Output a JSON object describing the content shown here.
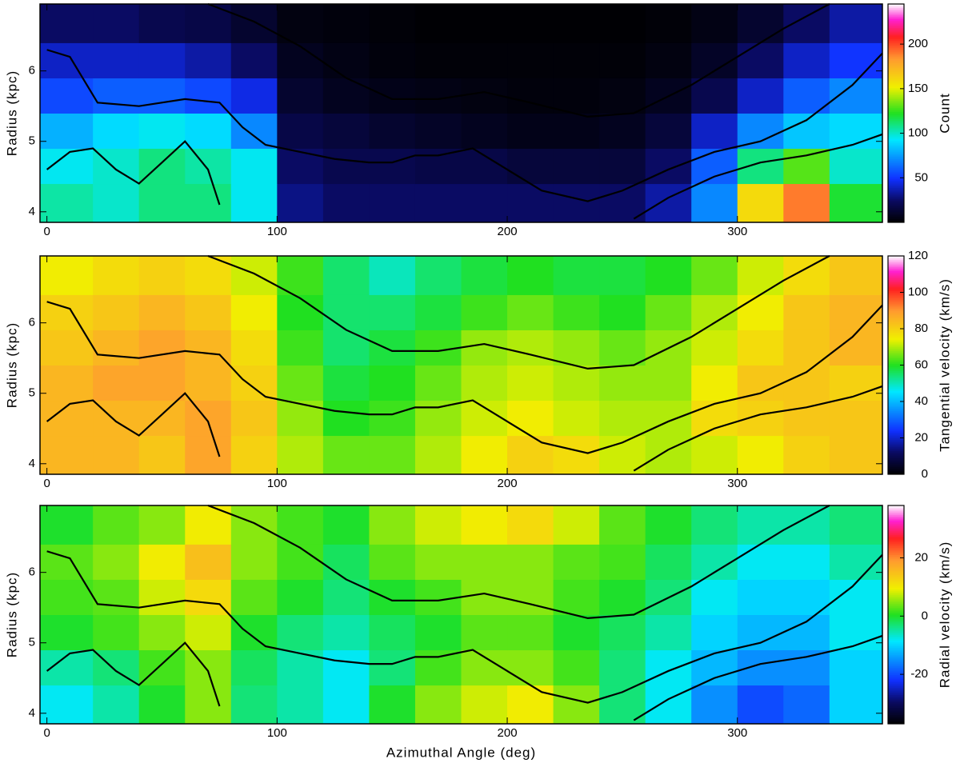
{
  "chart_data": [
    {
      "type": "heatmap",
      "y_label": "Radius (kpc)",
      "xlim": [
        -3,
        363
      ],
      "ylim": [
        3.85,
        6.95
      ],
      "xticks": [
        0,
        100,
        200,
        300
      ],
      "yticks": [
        4,
        5,
        6
      ],
      "x_bins": [
        -3,
        20,
        40,
        60,
        80,
        100,
        120,
        140,
        160,
        180,
        200,
        220,
        240,
        260,
        280,
        300,
        320,
        340,
        363
      ],
      "y_bins": [
        3.85,
        4.4,
        4.9,
        5.4,
        5.9,
        6.4,
        6.95
      ],
      "values": [
        [
          105,
          100,
          110,
          110,
          95,
          30,
          25,
          25,
          25,
          25,
          25,
          25,
          25,
          35,
          70,
          160,
          190,
          120
        ],
        [
          95,
          100,
          110,
          105,
          95,
          25,
          20,
          20,
          18,
          18,
          15,
          15,
          15,
          25,
          60,
          110,
          130,
          100
        ],
        [
          80,
          90,
          95,
          90,
          70,
          18,
          15,
          12,
          10,
          8,
          6,
          6,
          8,
          15,
          40,
          70,
          85,
          90
        ],
        [
          55,
          60,
          60,
          55,
          45,
          12,
          8,
          6,
          5,
          4,
          3,
          3,
          4,
          8,
          20,
          40,
          60,
          70
        ],
        [
          40,
          40,
          40,
          35,
          25,
          8,
          5,
          3,
          2,
          2,
          2,
          2,
          2,
          4,
          10,
          25,
          40,
          50
        ],
        [
          25,
          25,
          20,
          18,
          12,
          4,
          3,
          2,
          1,
          1,
          1,
          1,
          1,
          2,
          5,
          12,
          25,
          35
        ]
      ],
      "colorbar": {
        "label": "Count",
        "lim": [
          0,
          245
        ],
        "ticks": [
          50,
          100,
          150,
          200
        ]
      },
      "contours": [
        {
          "x": [
            70,
            90,
            110,
            130,
            150,
            170,
            190,
            210,
            235,
            255,
            280,
            300,
            320,
            340
          ],
          "y": [
            6.95,
            6.7,
            6.35,
            5.9,
            5.6,
            5.6,
            5.7,
            5.55,
            5.35,
            5.4,
            5.8,
            6.2,
            6.6,
            6.95
          ]
        },
        {
          "x": [
            0,
            10,
            22,
            40,
            60,
            75,
            85,
            95,
            110,
            125,
            140,
            150,
            160,
            170,
            185,
            200,
            215,
            235,
            250,
            270,
            290,
            310,
            330,
            350,
            363
          ],
          "y": [
            6.3,
            6.2,
            5.55,
            5.5,
            5.6,
            5.55,
            5.2,
            4.95,
            4.85,
            4.75,
            4.7,
            4.7,
            4.8,
            4.8,
            4.9,
            4.6,
            4.3,
            4.15,
            4.3,
            4.6,
            4.85,
            5.0,
            5.3,
            5.8,
            6.25
          ]
        },
        {
          "x": [
            0,
            10,
            20,
            30,
            40,
            50,
            60,
            70,
            75
          ],
          "y": [
            4.6,
            4.85,
            4.9,
            4.6,
            4.4,
            4.7,
            5.0,
            4.6,
            4.1
          ]
        },
        {
          "x": [
            255,
            270,
            290,
            310,
            330,
            350,
            363
          ],
          "y": [
            3.9,
            4.2,
            4.5,
            4.7,
            4.8,
            4.95,
            5.1
          ]
        }
      ]
    },
    {
      "type": "heatmap",
      "y_label": "Radius (kpc)",
      "xlim": [
        -3,
        363
      ],
      "ylim": [
        3.85,
        6.95
      ],
      "xticks": [
        0,
        100,
        200,
        300
      ],
      "yticks": [
        4,
        5,
        6
      ],
      "x_bins": [
        -3,
        20,
        40,
        60,
        80,
        100,
        120,
        140,
        160,
        180,
        200,
        220,
        240,
        260,
        280,
        300,
        320,
        340,
        363
      ],
      "y_bins": [
        3.85,
        4.4,
        4.9,
        5.4,
        5.9,
        6.4,
        6.95
      ],
      "values": [
        [
          85,
          85,
          82,
          88,
          80,
          70,
          65,
          65,
          70,
          75,
          80,
          78,
          72,
          70,
          72,
          75,
          80,
          82
        ],
        [
          85,
          85,
          85,
          88,
          82,
          68,
          60,
          62,
          68,
          72,
          75,
          72,
          70,
          70,
          78,
          80,
          82,
          82
        ],
        [
          85,
          88,
          88,
          85,
          80,
          65,
          58,
          60,
          65,
          70,
          72,
          70,
          68,
          68,
          75,
          82,
          82,
          80
        ],
        [
          82,
          85,
          88,
          85,
          78,
          62,
          55,
          58,
          62,
          68,
          70,
          68,
          65,
          68,
          72,
          78,
          82,
          85
        ],
        [
          80,
          82,
          85,
          82,
          75,
          60,
          55,
          55,
          58,
          62,
          65,
          62,
          60,
          65,
          70,
          75,
          82,
          85
        ],
        [
          75,
          78,
          80,
          78,
          72,
          62,
          55,
          50,
          55,
          58,
          60,
          58,
          58,
          60,
          65,
          72,
          78,
          82
        ]
      ],
      "colorbar": {
        "label": "Tangential velocity (km/s)",
        "lim": [
          0,
          120
        ],
        "ticks": [
          0,
          20,
          40,
          60,
          80,
          100,
          120
        ]
      }
    },
    {
      "type": "heatmap",
      "y_label": "Radius (kpc)",
      "x_label": "Azimuthal Angle (deg)",
      "xlim": [
        -3,
        363
      ],
      "ylim": [
        3.85,
        6.95
      ],
      "xticks": [
        0,
        100,
        200,
        300
      ],
      "yticks": [
        4,
        5,
        6
      ],
      "x_bins": [
        -3,
        20,
        40,
        60,
        80,
        100,
        120,
        140,
        160,
        180,
        200,
        220,
        240,
        260,
        280,
        300,
        320,
        340,
        363
      ],
      "y_bins": [
        3.85,
        4.4,
        4.9,
        5.4,
        5.9,
        6.4,
        6.95
      ],
      "values": [
        [
          -8,
          -5,
          0,
          5,
          -3,
          -5,
          -8,
          0,
          5,
          8,
          10,
          5,
          -3,
          -8,
          -15,
          -20,
          -18,
          -10
        ],
        [
          -5,
          -3,
          2,
          5,
          -2,
          -5,
          -8,
          -3,
          2,
          5,
          5,
          2,
          -3,
          -8,
          -12,
          -15,
          -15,
          -10
        ],
        [
          0,
          2,
          5,
          8,
          0,
          -3,
          -5,
          -2,
          0,
          3,
          3,
          0,
          -2,
          -5,
          -10,
          -12,
          -12,
          -8
        ],
        [
          2,
          3,
          8,
          12,
          3,
          0,
          -3,
          0,
          2,
          5,
          5,
          2,
          0,
          -3,
          -8,
          -10,
          -10,
          -8
        ],
        [
          3,
          5,
          10,
          15,
          5,
          2,
          -2,
          3,
          5,
          5,
          5,
          3,
          2,
          -2,
          -5,
          -8,
          -8,
          -5
        ],
        [
          0,
          3,
          5,
          10,
          5,
          2,
          0,
          5,
          8,
          10,
          12,
          8,
          3,
          0,
          -3,
          -5,
          -5,
          -3
        ]
      ],
      "colorbar": {
        "label": "Radial velocity (km/s)",
        "lim": [
          -37,
          38
        ],
        "ticks": [
          -20,
          0,
          20
        ]
      }
    }
  ]
}
